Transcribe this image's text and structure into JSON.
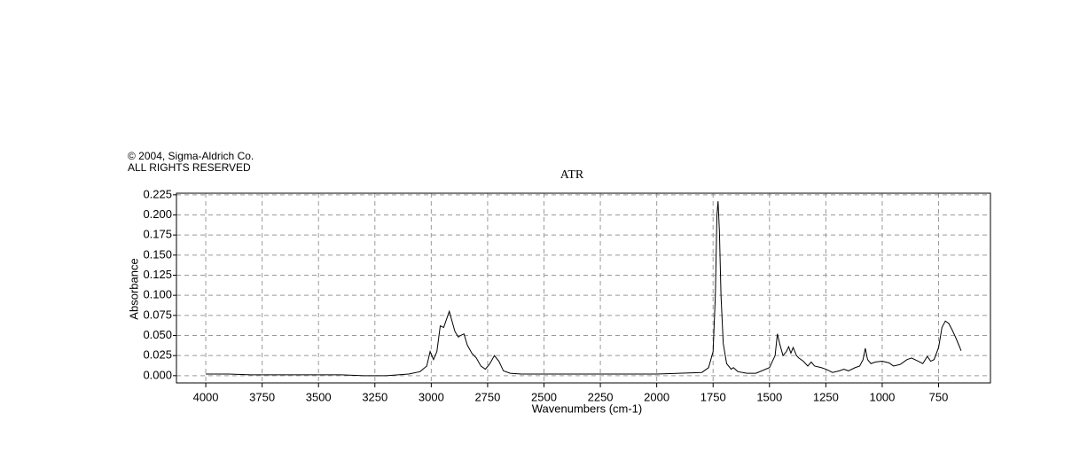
{
  "copyright": "© 2004, Sigma-Aldrich Co.",
  "rights": "ALL RIGHTS RESERVED",
  "chart_data": {
    "type": "line",
    "title": "ATR",
    "x_label": "Wavenumbers (cm-1)",
    "y_label": "Absorbance",
    "color": "#000000",
    "grid": true,
    "xlim": [
      4130,
      520
    ],
    "ylim": [
      -0.009,
      0.227
    ],
    "xticks": [
      4000,
      3750,
      3500,
      3250,
      3000,
      2750,
      2500,
      2250,
      2000,
      1750,
      1500,
      1250,
      1000,
      750
    ],
    "yticks": [
      {
        "value": 0,
        "label": "0.000"
      },
      {
        "value": 0.025,
        "label": "0.025"
      },
      {
        "value": 0.05,
        "label": "0.050"
      },
      {
        "value": 0.075,
        "label": "0.075"
      },
      {
        "value": 0.1,
        "label": "0.100"
      },
      {
        "value": 0.125,
        "label": "0.125"
      },
      {
        "value": 0.15,
        "label": "0.150"
      },
      {
        "value": 0.175,
        "label": "0.175"
      },
      {
        "value": 0.2,
        "label": "0.200"
      },
      {
        "value": 0.225,
        "label": "0.225"
      }
    ],
    "x": [
      4000,
      3900,
      3800,
      3700,
      3600,
      3500,
      3400,
      3300,
      3200,
      3100,
      3050,
      3020,
      3005,
      2990,
      2975,
      2960,
      2945,
      2930,
      2920,
      2910,
      2895,
      2880,
      2870,
      2855,
      2840,
      2820,
      2800,
      2780,
      2760,
      2740,
      2720,
      2700,
      2680,
      2650,
      2600,
      2500,
      2400,
      2300,
      2200,
      2100,
      2000,
      1900,
      1800,
      1770,
      1750,
      1740,
      1733,
      1728,
      1722,
      1715,
      1705,
      1690,
      1670,
      1660,
      1640,
      1600,
      1560,
      1500,
      1475,
      1465,
      1455,
      1440,
      1425,
      1415,
      1405,
      1395,
      1380,
      1370,
      1350,
      1330,
      1315,
      1300,
      1270,
      1250,
      1220,
      1190,
      1170,
      1150,
      1120,
      1100,
      1085,
      1075,
      1065,
      1050,
      1030,
      1000,
      970,
      950,
      920,
      890,
      870,
      840,
      820,
      800,
      785,
      770,
      750,
      735,
      720,
      705,
      690,
      675,
      660,
      650
    ],
    "values": [
      0.002,
      0.002,
      0.001,
      0.001,
      0.001,
      0.001,
      0.001,
      0.0,
      0.0,
      0.002,
      0.005,
      0.012,
      0.03,
      0.02,
      0.03,
      0.062,
      0.06,
      0.072,
      0.08,
      0.07,
      0.055,
      0.048,
      0.05,
      0.052,
      0.038,
      0.028,
      0.022,
      0.012,
      0.008,
      0.015,
      0.025,
      0.018,
      0.006,
      0.003,
      0.002,
      0.002,
      0.002,
      0.002,
      0.002,
      0.002,
      0.002,
      0.003,
      0.004,
      0.01,
      0.03,
      0.1,
      0.2,
      0.217,
      0.18,
      0.1,
      0.04,
      0.015,
      0.008,
      0.01,
      0.005,
      0.003,
      0.003,
      0.01,
      0.025,
      0.052,
      0.04,
      0.025,
      0.03,
      0.036,
      0.028,
      0.035,
      0.025,
      0.022,
      0.018,
      0.012,
      0.017,
      0.012,
      0.01,
      0.008,
      0.004,
      0.006,
      0.008,
      0.006,
      0.01,
      0.012,
      0.02,
      0.034,
      0.02,
      0.015,
      0.017,
      0.018,
      0.016,
      0.012,
      0.014,
      0.02,
      0.022,
      0.018,
      0.015,
      0.024,
      0.018,
      0.02,
      0.035,
      0.06,
      0.068,
      0.065,
      0.057,
      0.048,
      0.038,
      0.031
    ]
  }
}
